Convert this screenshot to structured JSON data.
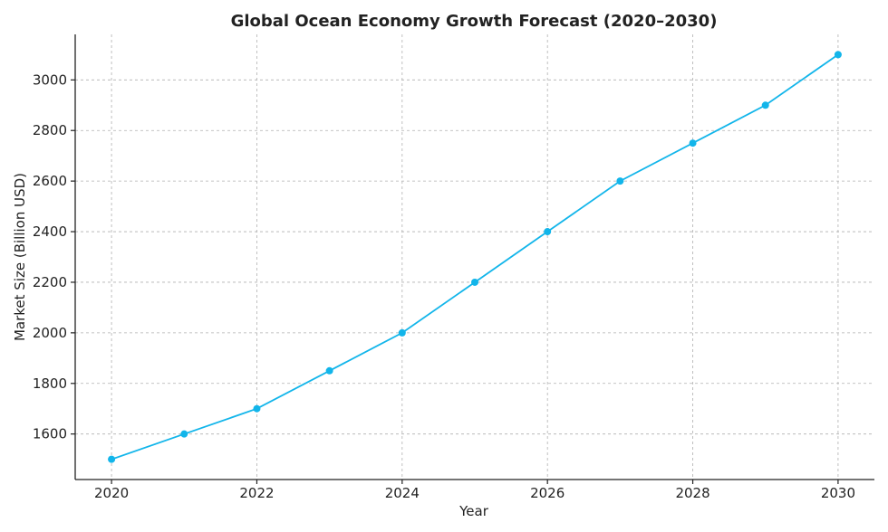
{
  "chart_data": {
    "type": "line",
    "title": "Global Ocean Economy Growth Forecast (2020–2030)",
    "xlabel": "Year",
    "ylabel": "Market Size (Billion USD)",
    "x": [
      2020,
      2021,
      2022,
      2023,
      2024,
      2025,
      2026,
      2027,
      2028,
      2029,
      2030
    ],
    "series": [
      {
        "values": [
          1500,
          1600,
          1700,
          1850,
          2000,
          2200,
          2400,
          2600,
          2750,
          2900,
          3100
        ],
        "color": "#12b5ea"
      }
    ],
    "xlim": [
      2019.5,
      2030.5
    ],
    "ylim": [
      1420,
      3180
    ],
    "xticks": [
      2020,
      2022,
      2024,
      2026,
      2028,
      2030
    ],
    "yticks": [
      1600,
      1800,
      2000,
      2200,
      2400,
      2600,
      2800,
      3000
    ],
    "grid": true,
    "marker": "circle"
  }
}
